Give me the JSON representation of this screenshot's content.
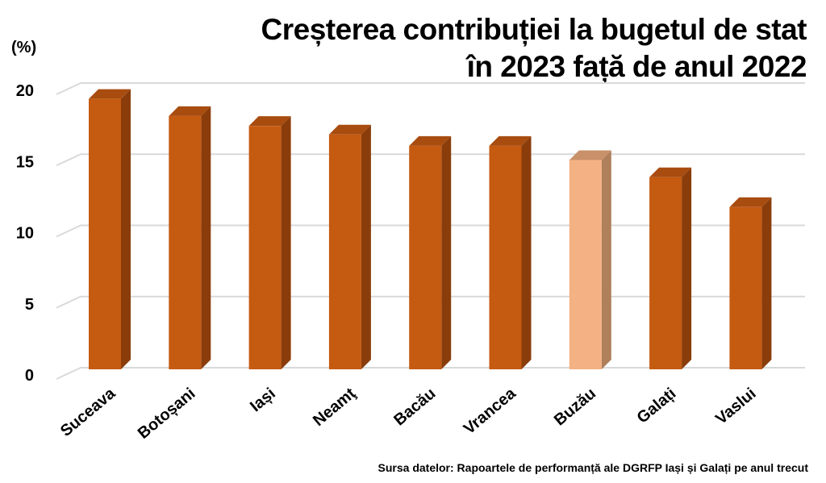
{
  "chart_data": {
    "type": "bar",
    "title_lines": [
      "Creșterea contribuției la bugetul de stat",
      "în 2023 față de anul 2022"
    ],
    "unit_label": "(%)",
    "categories": [
      "Suceava",
      "Botoșani",
      "Iași",
      "Neamţ",
      "Bacău",
      "Vrancea",
      "Buzău",
      "Galați",
      "Vaslui"
    ],
    "values": [
      19.0,
      17.8,
      17.1,
      16.5,
      15.7,
      15.7,
      14.7,
      13.5,
      11.4
    ],
    "highlight_index": 6,
    "ylim": [
      0,
      20
    ],
    "yticks": [
      0,
      5,
      10,
      15,
      20
    ],
    "grid": true,
    "source": "Sursa datelor: Rapoartele de performanță ale DGRFP Iași și Galați pe anul trecut",
    "colors": {
      "bar_front": "#c55a11",
      "bar_side": "#8a3d0b",
      "bar_top": "#a84c0f",
      "highlight_front": "#f4b183",
      "highlight_side": "#b07f5b",
      "highlight_top": "#c9916a",
      "grid": "#d9d9d9"
    }
  }
}
